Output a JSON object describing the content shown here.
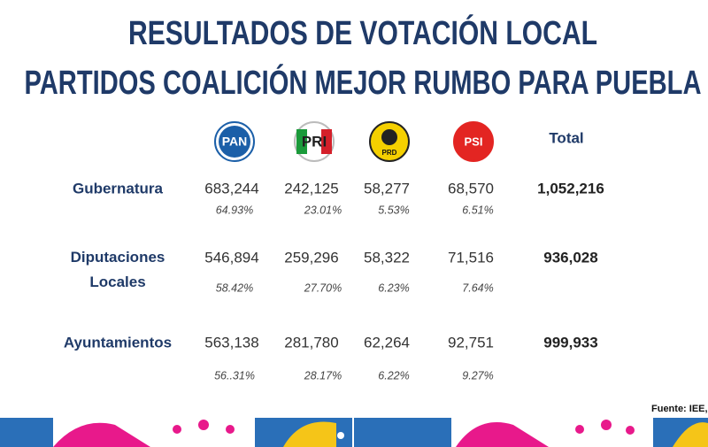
{
  "header": {
    "title_lines": [
      "RESULTADOS DE VOTACIÓN LOCAL",
      "PARTIDOS COALICIÓN MEJOR RUMBO PARA PUEBLA"
    ]
  },
  "table": {
    "parties": [
      "PAN",
      "PRI",
      "PRD",
      "PSI"
    ],
    "total_header": "Total",
    "rows": [
      {
        "label": "Gubernatura",
        "values": [
          "683,244",
          "242,125",
          "58,277",
          "68,570"
        ],
        "percents": [
          "64.93%",
          "23.01%",
          "5.53%",
          "6.51%"
        ],
        "total": "1,052,216"
      },
      {
        "label": "Diputaciones Locales",
        "values": [
          "546,894",
          "259,296",
          "58,322",
          "71,516"
        ],
        "percents": [
          "58.42%",
          "27.70%",
          "6.23%",
          "7.64%"
        ],
        "total": "936,028"
      },
      {
        "label": "Ayuntamientos",
        "values": [
          "563,138",
          "281,780",
          "62,264",
          "92,751"
        ],
        "percents": [
          "56..31%",
          "28.17%",
          "6.22%",
          "9.27%"
        ],
        "total": "999,933"
      }
    ]
  },
  "source": "Fuente: IEE,"
}
